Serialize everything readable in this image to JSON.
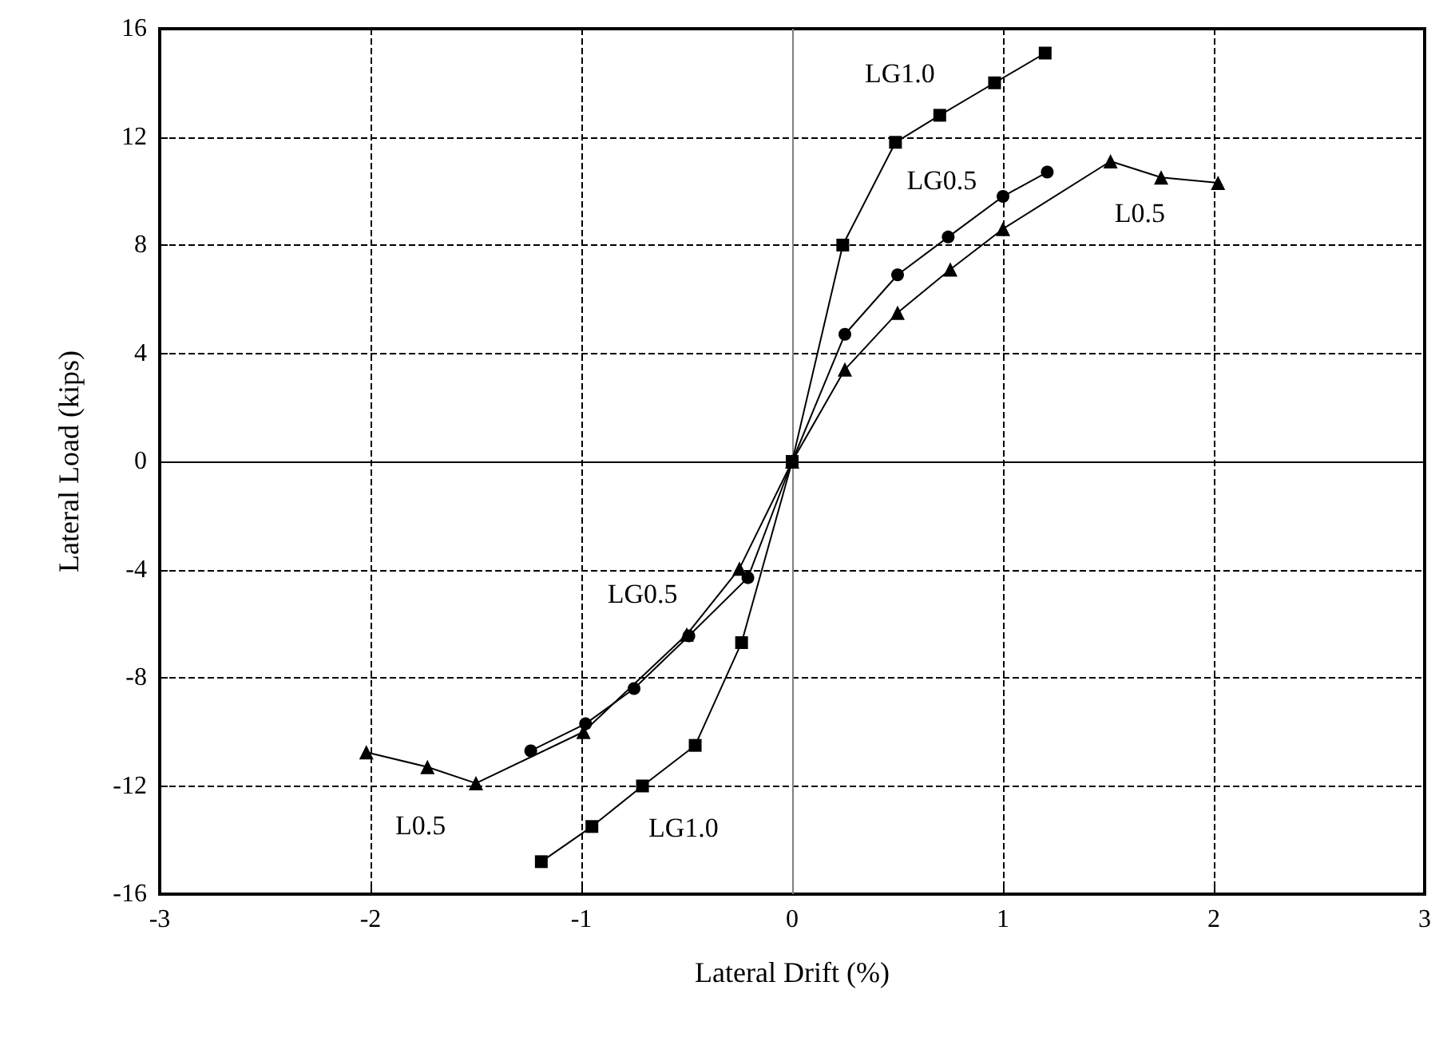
{
  "chart_data": {
    "type": "line",
    "xlabel": "Lateral Drift (%)",
    "ylabel": "Lateral Load (kips)",
    "xlim": [
      -3,
      3
    ],
    "xticks": [
      -3,
      -2,
      -1,
      0,
      1,
      2,
      3
    ],
    "ylim": [
      -16,
      16
    ],
    "yticks": [
      -16,
      -12,
      -8,
      -4,
      0,
      4,
      8,
      12,
      16
    ],
    "grid": true,
    "legend": false,
    "series": [
      {
        "name": "LG1.0",
        "color": "#000000",
        "marker": "square",
        "x": [
          -1.19,
          -0.95,
          -0.71,
          -0.46,
          -0.24,
          0,
          0.24,
          0.49,
          0.7,
          0.96,
          1.2
        ],
        "values": [
          -14.8,
          -13.5,
          -12.0,
          -10.5,
          -6.7,
          0,
          8.0,
          11.8,
          12.8,
          14.0,
          15.1
        ]
      },
      {
        "name": "LG0.5",
        "color": "#000000",
        "marker": "circle",
        "x": [
          -1.24,
          -0.98,
          -0.75,
          -0.49,
          -0.21,
          0,
          0.25,
          0.5,
          0.74,
          1.0,
          1.21
        ],
        "values": [
          -10.7,
          -9.7,
          -8.4,
          -6.45,
          -4.3,
          0,
          4.7,
          6.9,
          8.3,
          9.8,
          10.7
        ]
      },
      {
        "name": "L0.5",
        "color": "#000000",
        "marker": "triangle",
        "x": [
          -2.02,
          -1.73,
          -1.5,
          -0.99,
          -0.5,
          -0.25,
          0,
          0.25,
          0.5,
          0.75,
          1.0,
          1.51,
          1.75,
          2.02
        ],
        "values": [
          -10.75,
          -11.3,
          -11.9,
          -10.0,
          -6.4,
          -3.96,
          0,
          3.4,
          5.5,
          7.1,
          8.6,
          11.1,
          10.5,
          10.3
        ]
      }
    ],
    "ref_lines": [
      {
        "axis": "x",
        "value": 0,
        "color": "#808080",
        "line_style": "solid"
      },
      {
        "axis": "y",
        "value": 0,
        "color": "#000000",
        "line_style": "solid"
      }
    ]
  }
}
